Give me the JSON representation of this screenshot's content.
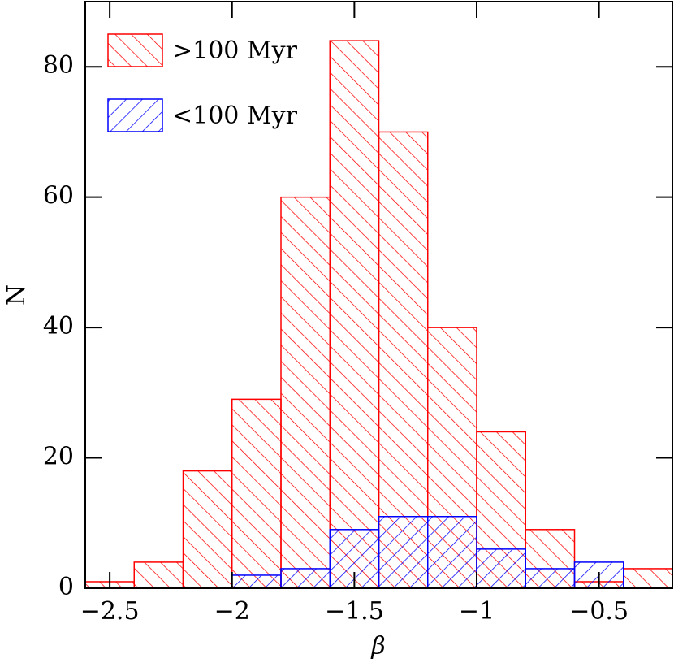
{
  "chart_data": {
    "type": "histogram",
    "xlabel": "β",
    "ylabel": "N",
    "xlim": [
      -2.6,
      -0.2
    ],
    "ylim": [
      0,
      90
    ],
    "xticks": [
      {
        "value": -2.5,
        "label": "−2.5"
      },
      {
        "value": -2,
        "label": "−2"
      },
      {
        "value": -1.5,
        "label": "−1.5"
      },
      {
        "value": -1,
        "label": "−1"
      },
      {
        "value": -0.5,
        "label": "−0.5"
      }
    ],
    "yticks": [
      0,
      20,
      40,
      60,
      80
    ],
    "legend": "upper left",
    "series": [
      {
        "name": ">100 Myr",
        "color": "#ff0000",
        "hatch": "\\",
        "bins": [
          -2.6,
          -2.4,
          -2.2,
          -2.0,
          -1.8,
          -1.6,
          -1.4,
          -1.2,
          -1.0,
          -0.8,
          -0.6,
          -0.4,
          -0.2
        ],
        "values": [
          1,
          4,
          18,
          29,
          60,
          84,
          70,
          40,
          24,
          9,
          1,
          3
        ]
      },
      {
        "name": "<100 Myr",
        "color": "#0000ff",
        "hatch": "/",
        "bins": [
          -2.0,
          -1.8,
          -1.6,
          -1.4,
          -1.2,
          -1.0,
          -0.8,
          -0.6,
          -0.4
        ],
        "values": [
          2,
          3,
          9,
          11,
          11,
          6,
          3,
          4
        ]
      }
    ]
  }
}
